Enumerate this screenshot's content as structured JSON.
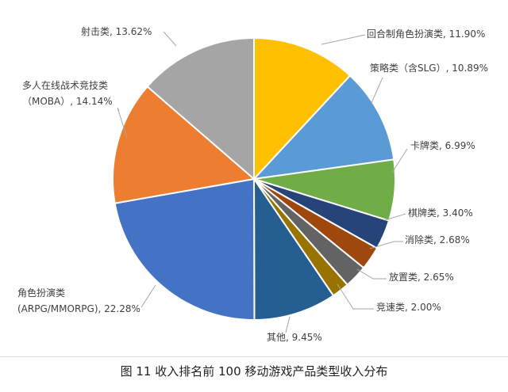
{
  "caption": "图 11 收入排名前 100 移动游戏产品类型收入分布",
  "chart_data": {
    "type": "pie",
    "title": "",
    "slices": [
      {
        "label": [
          "回合制角色扮演类, 11.90%"
        ],
        "value": 11.9,
        "color": "#ffc000"
      },
      {
        "label": [
          "策略类（含SLG）, 10.89%"
        ],
        "value": 10.89,
        "color": "#5b9bd5"
      },
      {
        "label": [
          "卡牌类, 6.99%"
        ],
        "value": 6.99,
        "color": "#70ad47"
      },
      {
        "label": [
          "棋牌类, 3.40%"
        ],
        "value": 3.4,
        "color": "#264478"
      },
      {
        "label": [
          "消除类, 2.68%"
        ],
        "value": 2.68,
        "color": "#9e480e"
      },
      {
        "label": [
          "放置类, 2.65%"
        ],
        "value": 2.65,
        "color": "#636363"
      },
      {
        "label": [
          "竞速类, 2.00%"
        ],
        "value": 2.0,
        "color": "#997300"
      },
      {
        "label": [
          "其他, 9.45%"
        ],
        "value": 9.45,
        "color": "#255e91"
      },
      {
        "label": [
          "角色扮演类",
          "(ARPG/MMORPG), 22.28%"
        ],
        "value": 22.28,
        "color": "#4472c4"
      },
      {
        "label": [
          "多人在线战术竞技类",
          "（MOBA）, 14.14%"
        ],
        "value": 14.14,
        "color": "#ed7d31"
      },
      {
        "label": [
          "射击类, 13.62%"
        ],
        "value": 13.62,
        "color": "#a5a5a5"
      }
    ]
  }
}
